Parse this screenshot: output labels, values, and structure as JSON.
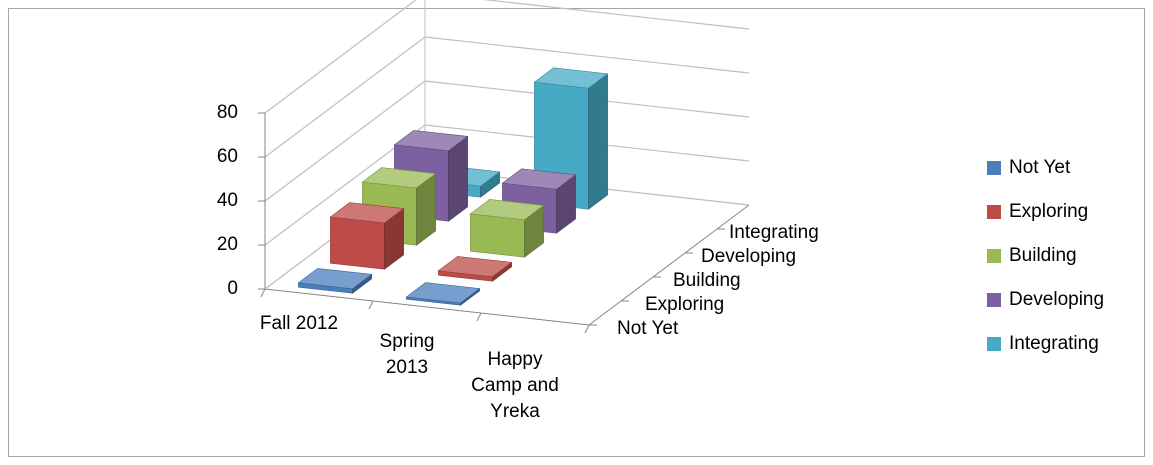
{
  "chart_data": {
    "type": "bar3d",
    "categories": [
      "Fall 2012",
      "Spring 2013",
      "Happy Camp and Yreka"
    ],
    "series": [
      {
        "name": "Not Yet",
        "color": "#4a7ebb",
        "values": [
          2,
          1,
          null
        ]
      },
      {
        "name": "Exploring",
        "color": "#be4b48",
        "values": [
          21,
          2,
          null
        ]
      },
      {
        "name": "Building",
        "color": "#98b954",
        "values": [
          26,
          17,
          null
        ]
      },
      {
        "name": "Developing",
        "color": "#7d60a0",
        "values": [
          32,
          20,
          null
        ]
      },
      {
        "name": "Integrating",
        "color": "#46aac5",
        "values": [
          5,
          55,
          null
        ]
      }
    ],
    "ylim": [
      0,
      80
    ],
    "yticks": [
      0,
      20,
      40,
      60,
      80
    ],
    "grid": true,
    "legend": "right"
  }
}
